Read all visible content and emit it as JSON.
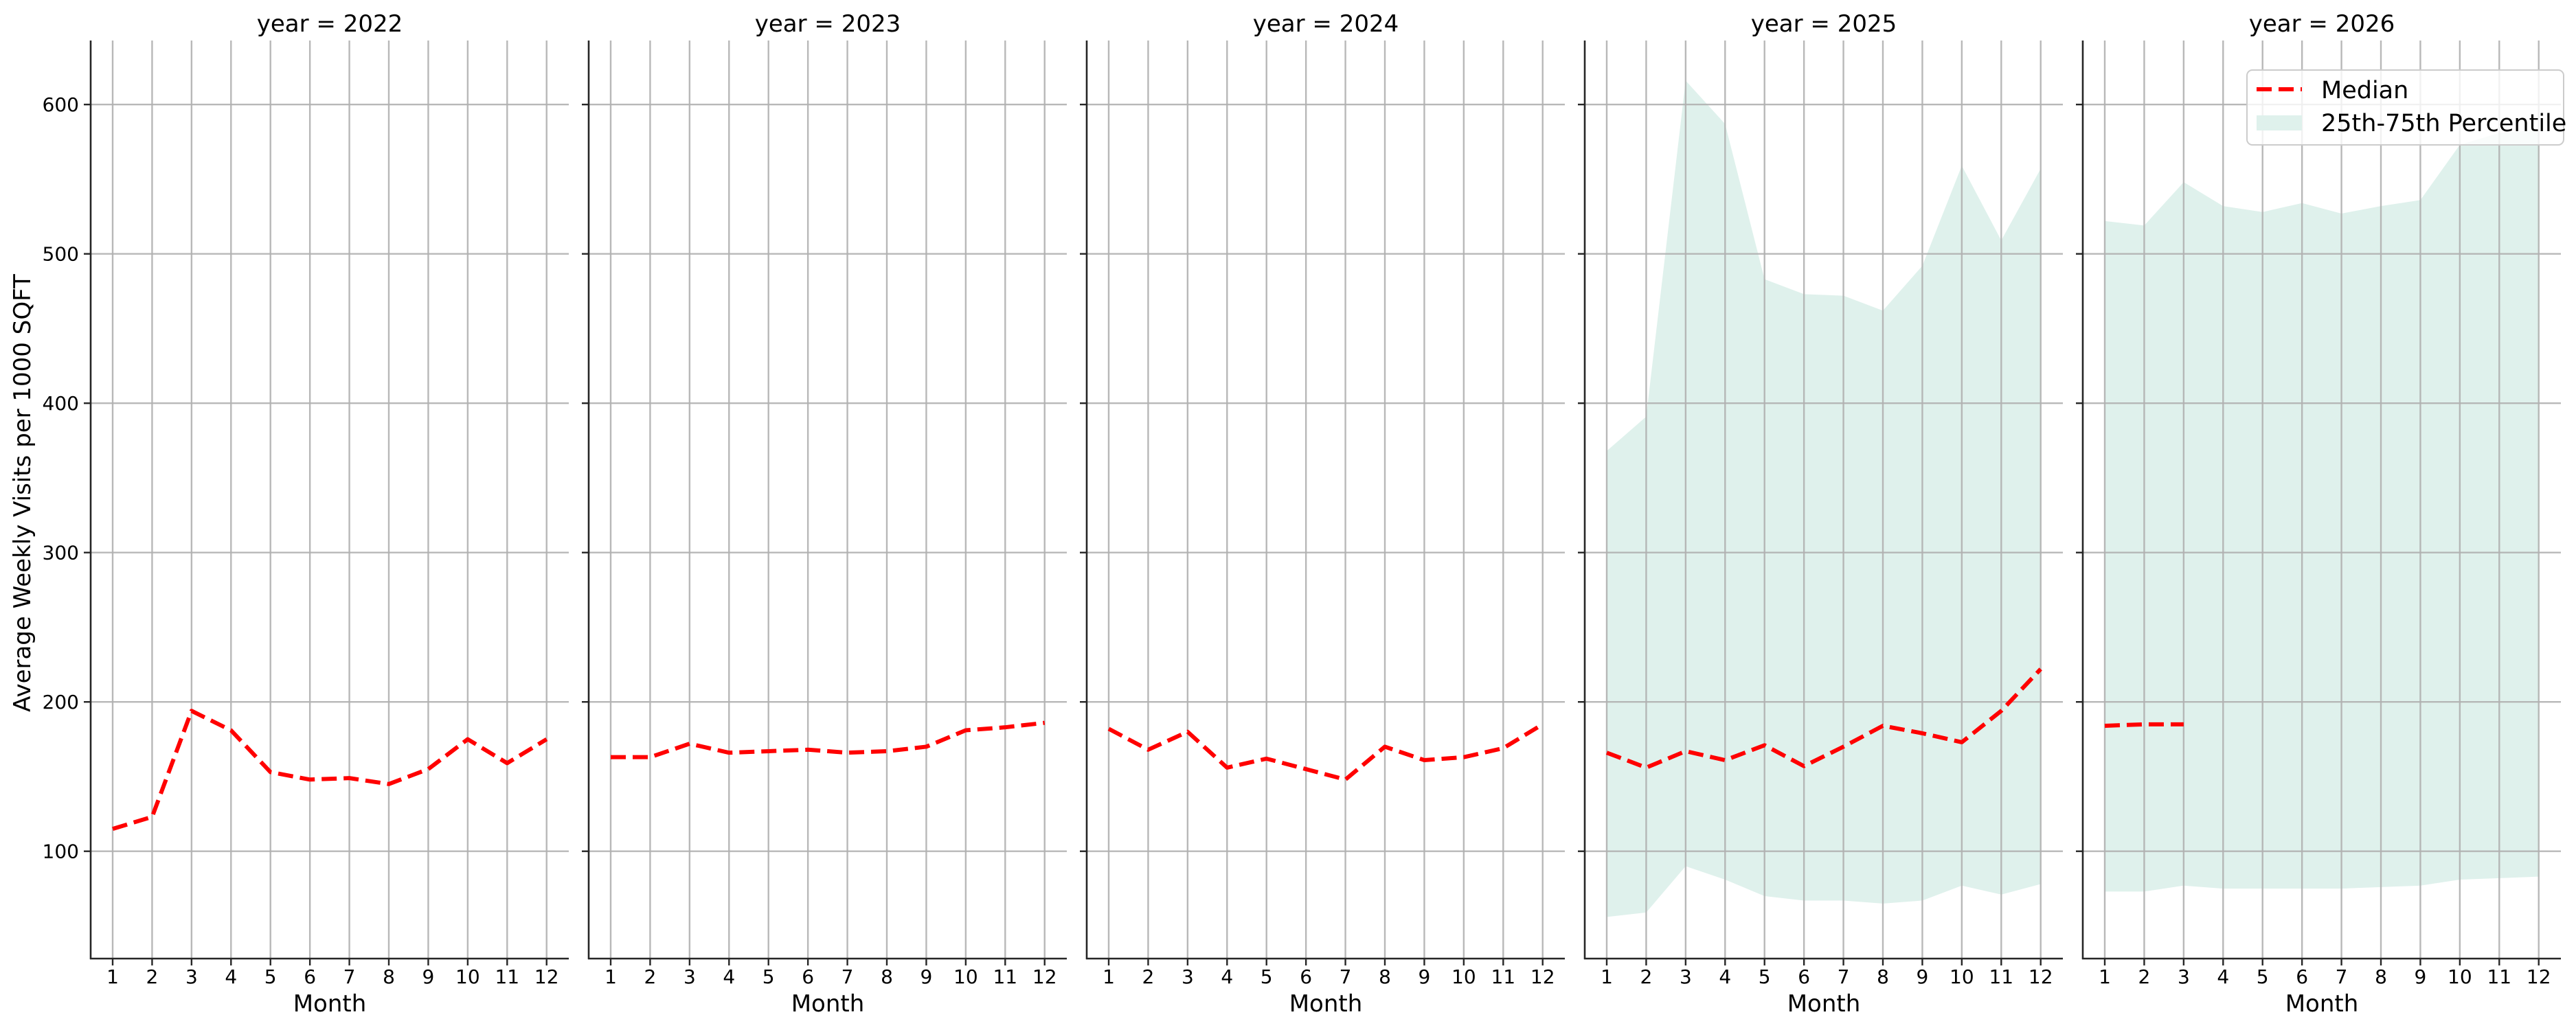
{
  "figure": {
    "ylabel": "Average Weekly Visits per 1000 SQFT",
    "xlabel": "Month",
    "colors": {
      "median": "#ff0000",
      "band": "#dff1ec",
      "grid": "#b0b0b0",
      "spine": "#262626"
    },
    "legend": {
      "median_label": "Median",
      "band_label": "25th-75th Percentile"
    }
  },
  "chart_data": {
    "type": "line",
    "title": "",
    "xlabel": "Month",
    "ylabel": "Average Weekly Visits per 1000 SQFT",
    "x": [
      1,
      2,
      3,
      4,
      5,
      6,
      7,
      8,
      9,
      10,
      11,
      12
    ],
    "xticks": [
      "1",
      "2",
      "3",
      "4",
      "5",
      "6",
      "7",
      "8",
      "9",
      "10",
      "11",
      "12"
    ],
    "yticks": [
      100,
      200,
      300,
      400,
      500,
      600
    ],
    "ylim": [
      28,
      644
    ],
    "grid": true,
    "legend_position": "upper right (last panel)",
    "legend": [
      "Median",
      "25th-75th Percentile"
    ],
    "facets": [
      {
        "title": "year = 2022",
        "median": [
          115,
          123,
          194,
          181,
          153,
          148,
          149,
          145,
          155,
          175,
          159,
          175
        ],
        "p25": null,
        "p75": null
      },
      {
        "title": "year = 2023",
        "median": [
          163,
          163,
          172,
          166,
          167,
          168,
          166,
          167,
          170,
          181,
          183,
          186
        ],
        "p25": null,
        "p75": null
      },
      {
        "title": "year = 2024",
        "median": [
          182,
          168,
          180,
          156,
          162,
          155,
          148,
          170,
          161,
          163,
          169,
          185
        ],
        "p25": null,
        "p75": null
      },
      {
        "title": "year = 2025",
        "median": [
          166,
          156,
          167,
          161,
          171,
          157,
          170,
          184,
          179,
          173,
          194,
          222
        ],
        "p25": [
          56,
          59,
          90,
          81,
          70,
          67,
          67,
          65,
          67,
          77,
          71,
          78
        ],
        "p75": [
          368,
          391,
          616,
          587,
          483,
          473,
          472,
          462,
          492,
          559,
          509,
          557
        ]
      },
      {
        "title": "year = 2026",
        "median": [
          184,
          185,
          185,
          null,
          null,
          null,
          null,
          null,
          null,
          null,
          null,
          null
        ],
        "p25": [
          73,
          73,
          77,
          75,
          75,
          75,
          75,
          76,
          77,
          81,
          82,
          83
        ],
        "p75": [
          522,
          519,
          548,
          532,
          528,
          534,
          527,
          532,
          536,
          573,
          581,
          583
        ]
      }
    ]
  }
}
